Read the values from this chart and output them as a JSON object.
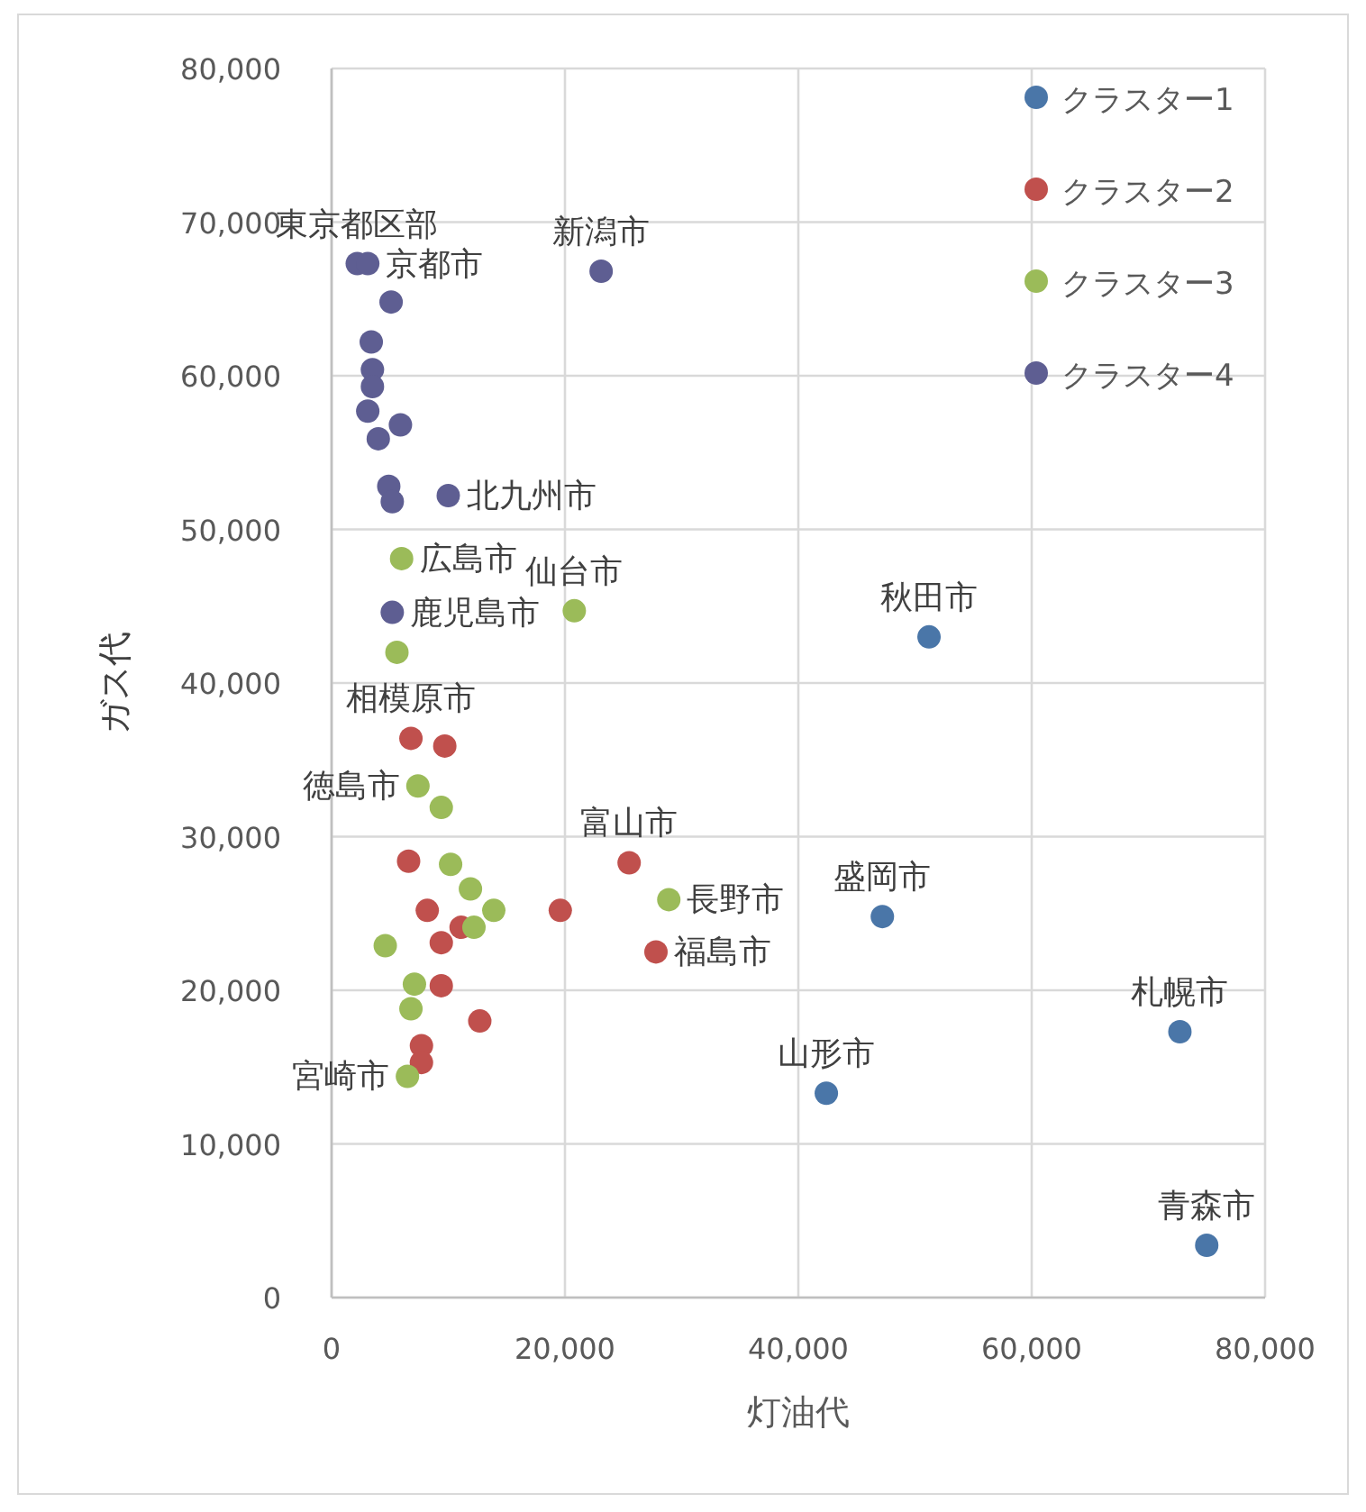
{
  "chart_data": {
    "type": "scatter",
    "xlabel": "灯油代",
    "ylabel": "ガス代",
    "xlim": [
      0,
      80000
    ],
    "ylim": [
      0,
      80000
    ],
    "xticks": [
      0,
      {
        "value": 20000,
        "label": "20,000"
      },
      {
        "value": 40000,
        "label": "40,000"
      },
      {
        "value": 60000,
        "label": "60,000"
      },
      {
        "value": 80000,
        "label": "80,000"
      }
    ],
    "yticks": [
      0,
      {
        "value": 10000,
        "label": "10,000"
      },
      {
        "value": 20000,
        "label": "20,000"
      },
      {
        "value": 30000,
        "label": "30,000"
      },
      {
        "value": 40000,
        "label": "40,000"
      },
      {
        "value": 50000,
        "label": "50,000"
      },
      {
        "value": 60000,
        "label": "60,000"
      },
      {
        "value": 70000,
        "label": "70,000"
      },
      {
        "value": 80000,
        "label": "80,000"
      }
    ],
    "grid": true,
    "legend": "top right",
    "marker": "circle",
    "series": [
      {
        "name": "クラスター1",
        "color": "#4a76a8",
        "x": [
          51200,
          47200,
          42400,
          72700,
          75000
        ],
        "values": [
          43000,
          24800,
          13300,
          17300,
          3400
        ]
      },
      {
        "name": "クラスター2",
        "color": "#c0504d",
        "x": [
          6800,
          9700,
          6600,
          8200,
          11100,
          19600,
          25500,
          27800,
          9400,
          9400,
          12700,
          7700,
          7700
        ],
        "values": [
          36400,
          35900,
          28400,
          25200,
          24100,
          25200,
          28300,
          22500,
          23100,
          20300,
          18000,
          16400,
          15300
        ]
      },
      {
        "name": "クラスター3",
        "color": "#9bbb59",
        "x": [
          20800,
          6000,
          5600,
          7400,
          9400,
          11900,
          13900,
          12200,
          4600,
          7100,
          6800,
          6500,
          28900,
          10200
        ],
        "values": [
          44700,
          48100,
          42000,
          33300,
          31900,
          26600,
          25200,
          24100,
          22900,
          20400,
          18800,
          14400,
          25900,
          28200
        ]
      },
      {
        "name": "クラスター4",
        "color": "#5e5e92",
        "x": [
          23100,
          2200,
          3100,
          5100,
          3400,
          3500,
          3500,
          3100,
          5900,
          4000,
          4900,
          5200,
          10000,
          5200
        ],
        "values": [
          66800,
          67300,
          67300,
          64800,
          62200,
          60400,
          59300,
          57700,
          56800,
          55900,
          52800,
          51800,
          52200,
          44600
        ]
      }
    ],
    "annotations": [
      {
        "text": "東京都区部",
        "x": 2200,
        "y": 67300
      },
      {
        "text": "京都市",
        "x": 3100,
        "y": 67300
      },
      {
        "text": "新潟市",
        "x": 23100,
        "y": 66800
      },
      {
        "text": "仙台市",
        "x": 20800,
        "y": 44700
      },
      {
        "text": "秋田市",
        "x": 51200,
        "y": 43000
      },
      {
        "text": "盛岡市",
        "x": 47200,
        "y": 24800
      },
      {
        "text": "山形市",
        "x": 42400,
        "y": 13300
      },
      {
        "text": "札幌市",
        "x": 72700,
        "y": 17300
      },
      {
        "text": "青森市",
        "x": 75000,
        "y": 3400
      },
      {
        "text": "富山市",
        "x": 25500,
        "y": 28300
      },
      {
        "text": "長野市",
        "x": 28900,
        "y": 25900
      },
      {
        "text": "福島市",
        "x": 27800,
        "y": 22500
      },
      {
        "text": "鹿児島市",
        "x": 5200,
        "y": 44600
      },
      {
        "text": "広島市",
        "x": 6000,
        "y": 48100
      },
      {
        "text": "相模原市",
        "x": 6800,
        "y": 36400
      },
      {
        "text": "徳島市",
        "x": 7400,
        "y": 33300
      },
      {
        "text": "宮崎市",
        "x": 6500,
        "y": 14400
      },
      {
        "text": "北九州市",
        "x": 10000,
        "y": 52200
      }
    ]
  }
}
